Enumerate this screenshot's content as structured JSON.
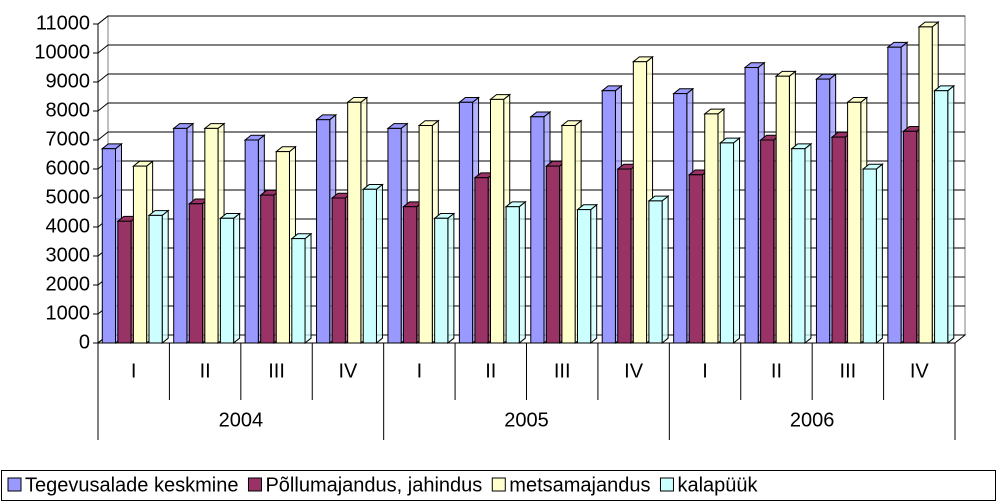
{
  "chart_data": {
    "type": "bar3d",
    "categories": [
      "I",
      "II",
      "III",
      "IV",
      "I",
      "II",
      "III",
      "IV",
      "I",
      "II",
      "III",
      "IV"
    ],
    "groups": [
      "2004",
      "2005",
      "2006"
    ],
    "series": [
      {
        "name": "Tegevusalade keskmine",
        "color": "#9999ff",
        "values": [
          6700,
          7400,
          7000,
          7700,
          7400,
          8300,
          7800,
          8700,
          8600,
          9500,
          9100,
          10200
        ]
      },
      {
        "name": "Põllumajandus, jahindus",
        "color": "#993366",
        "values": [
          4200,
          4800,
          5100,
          5000,
          4700,
          5700,
          6100,
          6000,
          5800,
          7000,
          7100,
          7300
        ]
      },
      {
        "name": "metsamajandus",
        "color": "#ffffcc",
        "values": [
          6100,
          7400,
          6600,
          8300,
          7500,
          8400,
          7500,
          9700,
          7900,
          9200,
          8300,
          10900
        ]
      },
      {
        "name": "kalapüük",
        "color": "#ccffff",
        "values": [
          4400,
          4300,
          3600,
          5300,
          4300,
          4700,
          4600,
          4900,
          6900,
          6700,
          6000,
          8700
        ]
      }
    ],
    "ylim": [
      0,
      11000
    ],
    "yticks": [
      0,
      1000,
      2000,
      3000,
      4000,
      5000,
      6000,
      7000,
      8000,
      9000,
      10000,
      11000
    ],
    "grid": true
  }
}
